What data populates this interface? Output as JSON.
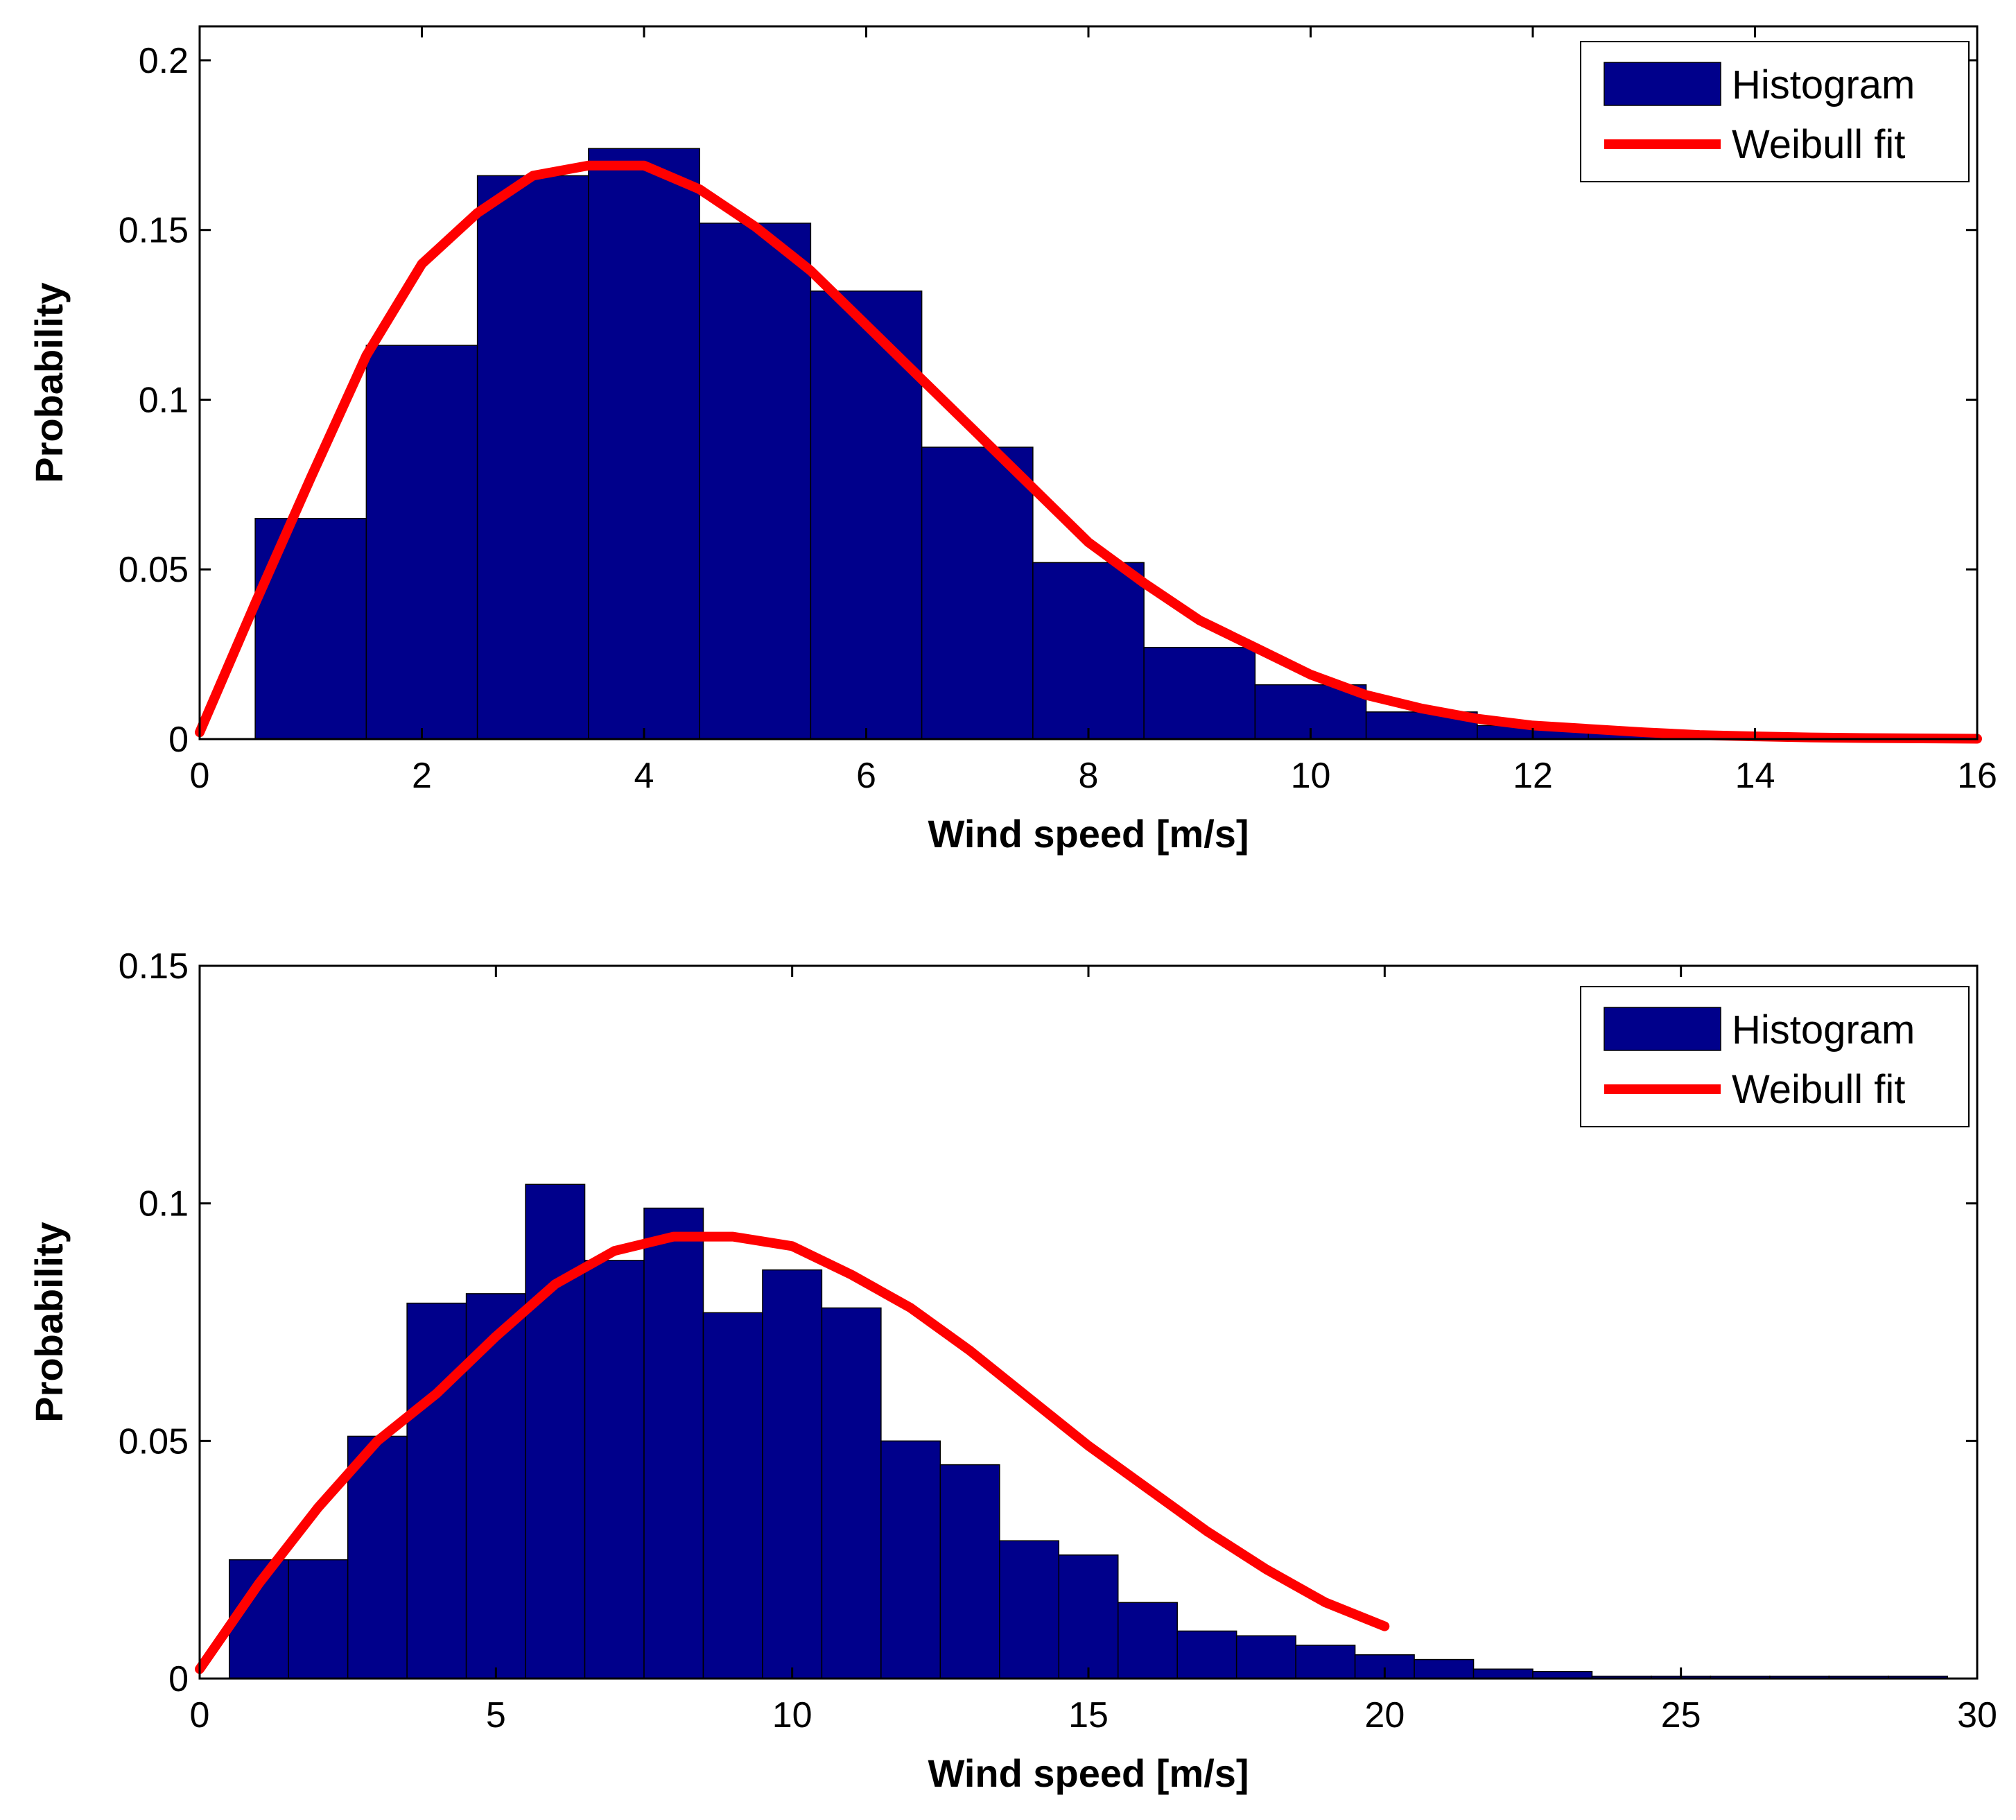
{
  "colors": {
    "bar": "#00008b",
    "fit": "#ff0000",
    "axis": "#000000"
  },
  "chart_data": [
    {
      "type": "bar",
      "xlabel": "Wind speed [m/s]",
      "ylabel": "Probability",
      "xlim": [
        0,
        16
      ],
      "ylim": [
        0,
        0.21
      ],
      "x_ticks": [
        0,
        2,
        4,
        6,
        8,
        10,
        12,
        14,
        16
      ],
      "y_ticks": [
        0,
        0.05,
        0.1,
        0.15,
        0.2
      ],
      "y_tick_labels": [
        "0",
        "0.05",
        "0.1",
        "0.15",
        "0.2"
      ],
      "legend": {
        "position": "top-right",
        "entries": [
          "Histogram",
          "Weibull fit"
        ]
      },
      "series": [
        {
          "name": "Histogram",
          "type": "bar",
          "bin_width": 1,
          "x": [
            1,
            2,
            3,
            4,
            5,
            6,
            7,
            8,
            9,
            10,
            11,
            12,
            13,
            14,
            15
          ],
          "values": [
            0.065,
            0.116,
            0.166,
            0.174,
            0.152,
            0.132,
            0.086,
            0.052,
            0.027,
            0.016,
            0.008,
            0.004,
            0.002,
            0.001,
            0.0005
          ]
        },
        {
          "name": "Weibull fit",
          "type": "line",
          "x": [
            0,
            0.5,
            1,
            1.5,
            2,
            2.5,
            3,
            3.5,
            4,
            4.5,
            5,
            5.5,
            6,
            6.5,
            7,
            7.5,
            8,
            8.5,
            9,
            9.5,
            10,
            10.5,
            11,
            11.5,
            12,
            12.5,
            13,
            13.5,
            14,
            14.5,
            15,
            15.5,
            16
          ],
          "y": [
            0.002,
            0.04,
            0.077,
            0.113,
            0.14,
            0.155,
            0.166,
            0.169,
            0.169,
            0.162,
            0.151,
            0.138,
            0.122,
            0.106,
            0.09,
            0.074,
            0.058,
            0.046,
            0.035,
            0.027,
            0.019,
            0.013,
            0.009,
            0.006,
            0.004,
            0.003,
            0.002,
            0.0012,
            0.0008,
            0.0005,
            0.0003,
            0.0002,
            0.0001
          ]
        }
      ]
    },
    {
      "type": "bar",
      "xlabel": "Wind speed [m/s]",
      "ylabel": "Probability",
      "xlim": [
        0,
        30
      ],
      "ylim": [
        0,
        0.15
      ],
      "x_ticks": [
        0,
        5,
        10,
        15,
        20,
        25,
        30
      ],
      "y_ticks": [
        0,
        0.05,
        0.1,
        0.15
      ],
      "y_tick_labels": [
        "0",
        "0.05",
        "0.1",
        "0.15"
      ],
      "legend": {
        "position": "top-right",
        "entries": [
          "Histogram",
          "Weibull fit"
        ]
      },
      "series": [
        {
          "name": "Histogram",
          "type": "bar",
          "bin_width": 1,
          "x": [
            1,
            2,
            3,
            4,
            5,
            6,
            7,
            8,
            9,
            10,
            11,
            12,
            13,
            14,
            15,
            16,
            17,
            18,
            19,
            20,
            21,
            22,
            23,
            24,
            25,
            26,
            27,
            28,
            29
          ],
          "values": [
            0.025,
            0.025,
            0.051,
            0.079,
            0.081,
            0.104,
            0.088,
            0.099,
            0.077,
            0.086,
            0.078,
            0.05,
            0.045,
            0.029,
            0.026,
            0.016,
            0.01,
            0.009,
            0.007,
            0.005,
            0.004,
            0.002,
            0.0015,
            0.0005,
            0.0005,
            0.0005,
            0.0005,
            0.0005,
            0.0005
          ]
        },
        {
          "name": "Weibull fit",
          "type": "line",
          "x": [
            0,
            1,
            2,
            3,
            4,
            5,
            6,
            7,
            8,
            9,
            10,
            11,
            12,
            13,
            14,
            15,
            16,
            17,
            18,
            19,
            20
          ],
          "y": [
            0.002,
            0.02,
            0.036,
            0.05,
            0.06,
            0.072,
            0.083,
            0.09,
            0.093,
            0.093,
            0.091,
            0.085,
            0.078,
            0.069,
            0.059,
            0.049,
            0.04,
            0.031,
            0.023,
            0.016,
            0.011
          ]
        }
      ]
    }
  ]
}
